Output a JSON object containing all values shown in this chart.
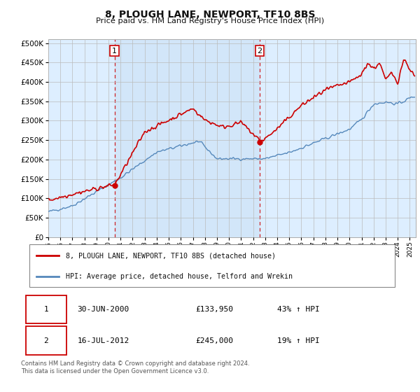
{
  "title": "8, PLOUGH LANE, NEWPORT, TF10 8BS",
  "subtitle": "Price paid vs. HM Land Registry's House Price Index (HPI)",
  "ytick_vals": [
    0,
    50000,
    100000,
    150000,
    200000,
    250000,
    300000,
    350000,
    400000,
    450000,
    500000
  ],
  "ylim": [
    0,
    510000
  ],
  "xlim_start": 1995.0,
  "xlim_end": 2025.5,
  "background_color": "#ddeeff",
  "fig_bg": "#ffffff",
  "red_line_color": "#cc0000",
  "blue_line_color": "#5588bb",
  "sale1_date_x": 2000.5,
  "sale1_price": 133950,
  "sale2_date_x": 2012.54,
  "sale2_price": 245000,
  "legend_line1": "8, PLOUGH LANE, NEWPORT, TF10 8BS (detached house)",
  "legend_line2": "HPI: Average price, detached house, Telford and Wrekin",
  "table_row1": [
    "1",
    "30-JUN-2000",
    "£133,950",
    "43% ↑ HPI"
  ],
  "table_row2": [
    "2",
    "16-JUL-2012",
    "£245,000",
    "19% ↑ HPI"
  ],
  "footnote": "Contains HM Land Registry data © Crown copyright and database right 2024.\nThis data is licensed under the Open Government Licence v3.0."
}
